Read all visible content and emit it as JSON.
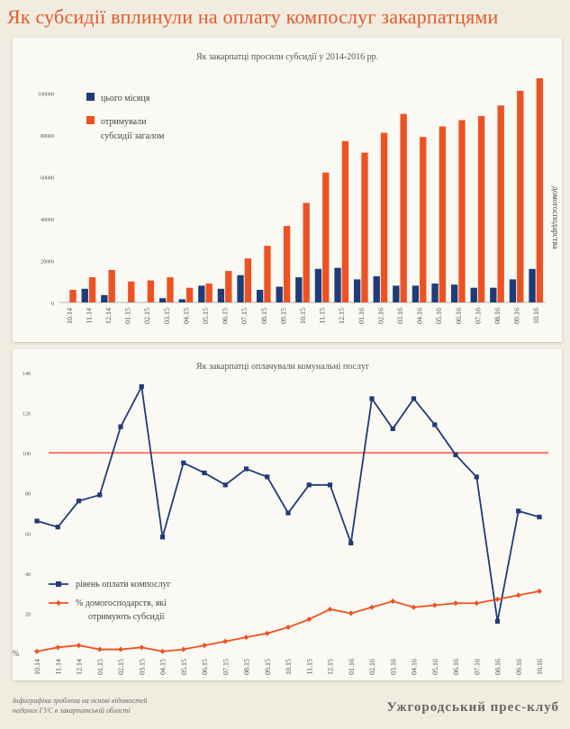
{
  "page": {
    "title": "Як субсидії вплинули на оплату компослуг закарпатцями",
    "footnote_line1": "Інфографіка зроблена на основі відомостей",
    "footnote_line2": "наданих ГУС в закарпатській області",
    "publisher": "Ужгородський прес-клуб"
  },
  "colors": {
    "navy": "#1f3c78",
    "orange": "#ee5222",
    "ref_line": "#f07a6a",
    "grid": "#d8d8d8"
  },
  "chart_data": [
    {
      "type": "bar",
      "title": "Як закарпатці просили субсидії у 2014-2016 рр.",
      "ylabel": "домогосподарства",
      "ylim": [
        0,
        110000
      ],
      "yticks": [
        0,
        20000,
        40000,
        60000,
        80000,
        100000
      ],
      "categories": [
        "10.14",
        "11.14",
        "12.14",
        "01.15",
        "02.15",
        "03.15",
        "04.15",
        "05.15",
        "06.15",
        "07.15",
        "08.15",
        "09.15",
        "10.15",
        "11.15",
        "12.15",
        "01.16",
        "02.16",
        "03.16",
        "04.16",
        "05.16",
        "06.16",
        "07.16",
        "08.16",
        "09.16",
        "10.16"
      ],
      "legend": {
        "series1": "цього місяця",
        "series2_line1": "отримували",
        "series2_line2": "субсидії загалом"
      },
      "series": [
        {
          "name": "цього місяця",
          "color": "#1f3c78",
          "values": [
            0,
            6500,
            3500,
            0,
            0,
            2000,
            1500,
            8000,
            6500,
            13000,
            6000,
            7500,
            12000,
            16000,
            16500,
            11000,
            12500,
            8000,
            8000,
            9000,
            8500,
            7000,
            7000,
            11000,
            16000
          ]
        },
        {
          "name": "отримували субсидії загалом",
          "color": "#ee5222",
          "values": [
            6000,
            12000,
            15500,
            10000,
            10500,
            12000,
            7000,
            9000,
            15000,
            21000,
            27000,
            36500,
            47500,
            62000,
            77000,
            71500,
            81000,
            90000,
            79000,
            84000,
            87000,
            89000,
            94000,
            101000,
            107000
          ]
        }
      ]
    },
    {
      "type": "line",
      "title": "Як закарпатці оплачували комунальні послуг",
      "ylim": [
        0,
        140
      ],
      "yticks": [
        0,
        20,
        40,
        60,
        80,
        100,
        120,
        140
      ],
      "zero_tick_label": "%",
      "reference_line": 100,
      "categories": [
        "10.14",
        "11.14",
        "12.14",
        "01.15",
        "02.15",
        "03.15",
        "04.15",
        "05.15",
        "06.15",
        "07.15",
        "08.15",
        "09.15",
        "10.15",
        "11.15",
        "12.15",
        "01.16",
        "02.16",
        "03.16",
        "04.16",
        "05.16",
        "06.16",
        "07.16",
        "08.16",
        "09.16",
        "10.16"
      ],
      "legend": {
        "series1": "рівень оплати компослуг",
        "series2_line1": "% домогосподарств, які",
        "series2_line2": "отримують субсидії"
      },
      "series": [
        {
          "name": "рівень оплати компослуг",
          "color": "#1f3c78",
          "marker": "square",
          "values": [
            66,
            63,
            76,
            79,
            113,
            133,
            58,
            95,
            90,
            84,
            92,
            88,
            70,
            84,
            84,
            55,
            127,
            112,
            127,
            114,
            99,
            88,
            16,
            71,
            68
          ]
        },
        {
          "name": "% домогосподарств, які отримують субсидії",
          "color": "#ee5222",
          "marker": "diamond",
          "values": [
            1,
            3,
            4,
            2,
            2,
            3,
            1,
            2,
            4,
            6,
            8,
            10,
            13,
            17,
            22,
            20,
            23,
            26,
            23,
            24,
            25,
            25,
            27,
            29,
            31
          ]
        }
      ]
    }
  ]
}
